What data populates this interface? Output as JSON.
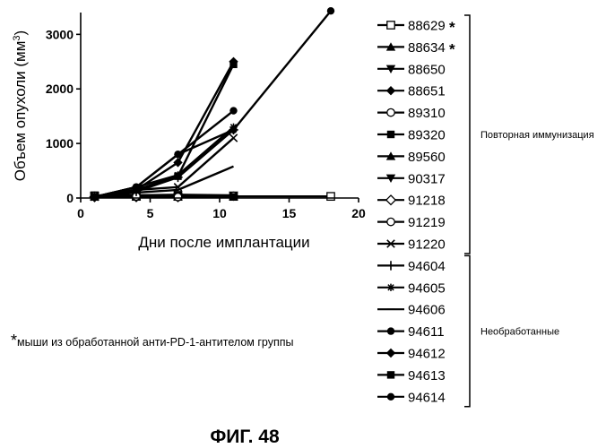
{
  "chart_data": {
    "type": "line",
    "title": "",
    "xlabel": "Дни после имплантации",
    "ylabel": "Объем опухоли (мм",
    "ylabel_sup": "3",
    "ylabel_close": ")",
    "xlim": [
      0,
      20
    ],
    "ylim": [
      0,
      3400
    ],
    "xticks": [
      0,
      5,
      10,
      15,
      20
    ],
    "yticks": [
      0,
      1000,
      2000,
      3000
    ],
    "grid": false,
    "legend_position": "right",
    "series": [
      {
        "name": "88629",
        "star": "*",
        "group": 1,
        "marker": "square-open",
        "x": [
          1,
          4,
          7,
          11,
          18
        ],
        "y": [
          40,
          30,
          30,
          30,
          30
        ]
      },
      {
        "name": "88634",
        "star": "*",
        "group": 1,
        "marker": "triangle-up",
        "x": [
          1,
          4,
          7,
          11
        ],
        "y": [
          30,
          25,
          20,
          25
        ]
      },
      {
        "name": "88650",
        "star": "",
        "group": 1,
        "marker": "triangle-down",
        "x": [
          1,
          4,
          7,
          11
        ],
        "y": [
          40,
          50,
          60,
          50
        ]
      },
      {
        "name": "88651",
        "star": "",
        "group": 1,
        "marker": "diamond",
        "x": [
          1,
          4,
          7,
          11
        ],
        "y": [
          20,
          50,
          40,
          30
        ]
      },
      {
        "name": "89310",
        "star": "",
        "group": 1,
        "marker": "circle-open",
        "x": [
          1,
          4,
          7,
          11
        ],
        "y": [
          30,
          40,
          30,
          40
        ]
      },
      {
        "name": "89320",
        "star": "",
        "group": 1,
        "marker": "square",
        "x": [
          1,
          4,
          7,
          11
        ],
        "y": [
          50,
          40,
          20,
          20
        ]
      },
      {
        "name": "89560",
        "star": "",
        "group": 1,
        "marker": "triangle-up",
        "x": [
          1,
          4,
          7
        ],
        "y": [
          20,
          30,
          20
        ]
      },
      {
        "name": "90317",
        "star": "",
        "group": 1,
        "marker": "triangle-down",
        "x": [
          1,
          4,
          7
        ],
        "y": [
          30,
          40,
          30
        ]
      },
      {
        "name": "91218",
        "star": "",
        "group": 1,
        "marker": "diamond-open",
        "x": [
          1,
          4,
          7
        ],
        "y": [
          20,
          20,
          20
        ]
      },
      {
        "name": "91219",
        "star": "",
        "group": 1,
        "marker": "circle-open",
        "x": [
          1,
          4,
          7
        ],
        "y": [
          40,
          30,
          20
        ]
      },
      {
        "name": "91220",
        "star": "",
        "group": 1,
        "marker": "x",
        "x": [
          1,
          4,
          7,
          11
        ],
        "y": [
          20,
          150,
          200,
          1100
        ]
      },
      {
        "name": "94604",
        "star": "",
        "group": 2,
        "marker": "plus",
        "x": [
          1,
          4,
          7,
          11
        ],
        "y": [
          20,
          120,
          380,
          1250
        ]
      },
      {
        "name": "94605",
        "star": "",
        "group": 2,
        "marker": "asterisk",
        "x": [
          1,
          4,
          7,
          11
        ],
        "y": [
          20,
          200,
          420,
          1300
        ]
      },
      {
        "name": "94606",
        "star": "",
        "group": 2,
        "marker": "dash",
        "x": [
          1,
          4,
          7,
          11
        ],
        "y": [
          20,
          100,
          150,
          580
        ]
      },
      {
        "name": "94611",
        "star": "",
        "group": 2,
        "marker": "circle",
        "x": [
          1,
          4,
          7,
          11,
          18
        ],
        "y": [
          20,
          200,
          800,
          1250,
          3430
        ]
      },
      {
        "name": "94612",
        "star": "",
        "group": 2,
        "marker": "diamond",
        "x": [
          1,
          4,
          7,
          11
        ],
        "y": [
          20,
          150,
          650,
          2500
        ]
      },
      {
        "name": "94613",
        "star": "",
        "group": 2,
        "marker": "square",
        "x": [
          1,
          4,
          7,
          11
        ],
        "y": [
          20,
          150,
          400,
          2450
        ]
      },
      {
        "name": "94614",
        "star": "",
        "group": 2,
        "marker": "circle",
        "x": [
          1,
          4,
          7,
          11
        ],
        "y": [
          20,
          200,
          800,
          1600
        ]
      }
    ],
    "groups": [
      {
        "label": "Повторная иммунизация"
      },
      {
        "label": "Необработанные"
      }
    ]
  },
  "footnote": {
    "star": "*",
    "text": "мыши из обработанной анти-PD-1-антителом группы"
  },
  "figure_caption": "ФИГ. 48"
}
